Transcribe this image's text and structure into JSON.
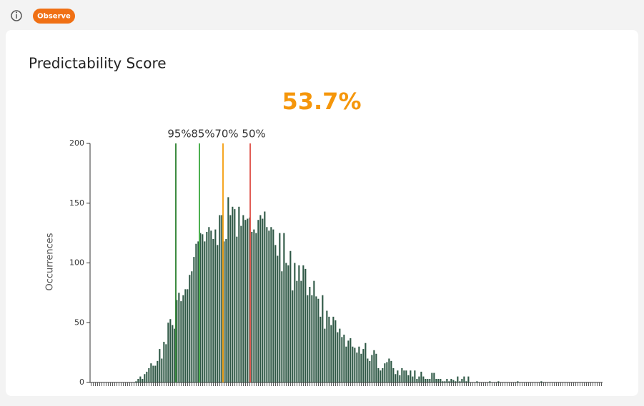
{
  "header": {
    "badge": "Observe"
  },
  "chart_data": {
    "type": "histogram",
    "title": "Predictability Score",
    "headline": "53.7%",
    "y_label": "Occurrences",
    "color": "#2e5745",
    "values": [
      0,
      0,
      0,
      0,
      0,
      0,
      0,
      0,
      0,
      0,
      0,
      0,
      0,
      0,
      0,
      0,
      0,
      0,
      0,
      0,
      0,
      1,
      3,
      5,
      3,
      7,
      9,
      12,
      16,
      14,
      14,
      18,
      28,
      20,
      34,
      32,
      50,
      53,
      48,
      45,
      69,
      75,
      68,
      73,
      78,
      78,
      90,
      93,
      105,
      116,
      118,
      125,
      124,
      118,
      126,
      130,
      127,
      120,
      128,
      115,
      140,
      140,
      118,
      120,
      155,
      140,
      147,
      145,
      122,
      147,
      131,
      140,
      136,
      137,
      138,
      126,
      128,
      125,
      136,
      140,
      137,
      143,
      130,
      127,
      130,
      128,
      115,
      106,
      125,
      93,
      125,
      100,
      98,
      110,
      77,
      100,
      85,
      98,
      85,
      98,
      95,
      73,
      80,
      73,
      85,
      72,
      70,
      55,
      73,
      45,
      60,
      55,
      48,
      55,
      52,
      42,
      45,
      38,
      40,
      30,
      35,
      37,
      30,
      29,
      25,
      30,
      24,
      28,
      33,
      20,
      18,
      23,
      27,
      24,
      12,
      10,
      12,
      16,
      17,
      20,
      18,
      12,
      7,
      10,
      6,
      12,
      10,
      10,
      6,
      10,
      5,
      10,
      3,
      5,
      9,
      5,
      3,
      3,
      3,
      8,
      8,
      3,
      3,
      3,
      1,
      1,
      3,
      1,
      3,
      2,
      1,
      5,
      1,
      3,
      5,
      1,
      5,
      0,
      0,
      0,
      1,
      0,
      0,
      0,
      0,
      0,
      1,
      0,
      0,
      0,
      1,
      0,
      0,
      0,
      0,
      0,
      0,
      0,
      0,
      1,
      0,
      0,
      0,
      0,
      0,
      0,
      0,
      0,
      0,
      0,
      1,
      0,
      0,
      0,
      0,
      0,
      0,
      0,
      0,
      0,
      0,
      0,
      0,
      0,
      0,
      0,
      0,
      0,
      0,
      0,
      0,
      0,
      0,
      0,
      0,
      0,
      0,
      0,
      0
    ],
    "xlim": [
      0,
      239
    ],
    "ylim": [
      0,
      200
    ],
    "yticks": [
      0,
      50,
      100,
      150,
      200
    ],
    "thresholds": [
      {
        "label": "95%",
        "x": 40,
        "color": "#3d8b40"
      },
      {
        "label": "85%",
        "x": 51,
        "color": "#4caf50"
      },
      {
        "label": "70%",
        "x": 62,
        "color": "#f5a623"
      },
      {
        "label": "50%",
        "x": 74.7,
        "color": "#e05a52"
      }
    ]
  }
}
